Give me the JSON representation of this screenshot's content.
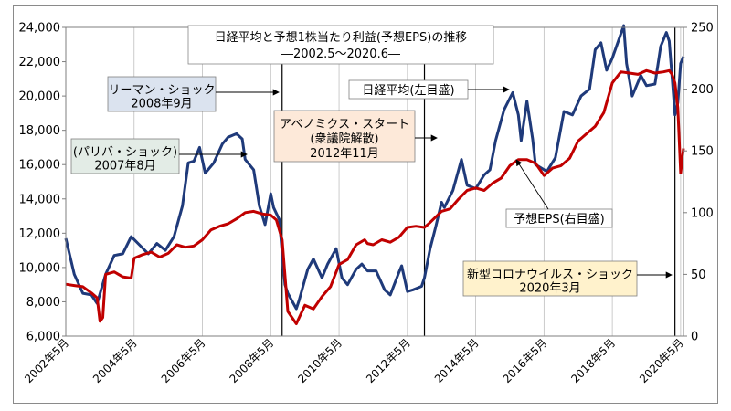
{
  "chart_data": {
    "type": "line",
    "title": "日経平均と予想1株当たり利益(予想EPS)の推移",
    "subtitle": "―2002.5～2020.6―",
    "x_ticks": [
      "2002年5月",
      "2004年5月",
      "2006年5月",
      "2008年5月",
      "2010年5月",
      "2012年5月",
      "2014年5月",
      "2016年5月",
      "2018年5月",
      "2020年5月"
    ],
    "xlim": [
      "2002-05",
      "2020-06"
    ],
    "y_left": {
      "ylim": [
        6000,
        24000
      ],
      "ticks": [
        "6,000",
        "8,000",
        "10,000",
        "12,000",
        "14,000",
        "16,000",
        "18,000",
        "20,000",
        "22,000",
        "24,000"
      ]
    },
    "y_right": {
      "ylim": [
        0,
        250
      ],
      "ticks": [
        "0",
        "50",
        "100",
        "150",
        "200",
        "250"
      ]
    },
    "grid": "vertical",
    "series": [
      {
        "name": "日経平均(左目盛)",
        "axis": "left",
        "color": "#1f3a7a",
        "points": [
          [
            "2002-05",
            11700
          ],
          [
            "2002-08",
            9600
          ],
          [
            "2002-11",
            8500
          ],
          [
            "2003-02",
            8400
          ],
          [
            "2003-04",
            7900
          ],
          [
            "2003-07",
            9600
          ],
          [
            "2003-10",
            10700
          ],
          [
            "2004-01",
            10800
          ],
          [
            "2004-04",
            11800
          ],
          [
            "2004-07",
            11300
          ],
          [
            "2004-10",
            10800
          ],
          [
            "2005-01",
            11400
          ],
          [
            "2005-04",
            11000
          ],
          [
            "2005-07",
            11800
          ],
          [
            "2005-10",
            13600
          ],
          [
            "2005-12",
            16100
          ],
          [
            "2006-02",
            16200
          ],
          [
            "2006-04",
            17000
          ],
          [
            "2006-06",
            15500
          ],
          [
            "2006-09",
            16100
          ],
          [
            "2006-12",
            17200
          ],
          [
            "2007-02",
            17600
          ],
          [
            "2007-05",
            17800
          ],
          [
            "2007-07",
            17500
          ],
          [
            "2007-08",
            16300
          ],
          [
            "2007-11",
            15700
          ],
          [
            "2008-01",
            13600
          ],
          [
            "2008-03",
            12500
          ],
          [
            "2008-05",
            14300
          ],
          [
            "2008-06",
            13500
          ],
          [
            "2008-08",
            12800
          ],
          [
            "2008-10",
            9000
          ],
          [
            "2008-11",
            8500
          ],
          [
            "2009-02",
            7600
          ],
          [
            "2009-03",
            8100
          ],
          [
            "2009-06",
            9900
          ],
          [
            "2009-08",
            10500
          ],
          [
            "2009-11",
            9400
          ],
          [
            "2010-01",
            10200
          ],
          [
            "2010-04",
            11100
          ],
          [
            "2010-06",
            9400
          ],
          [
            "2010-08",
            9000
          ],
          [
            "2010-11",
            9900
          ],
          [
            "2011-01",
            10200
          ],
          [
            "2011-03",
            9800
          ],
          [
            "2011-06",
            9800
          ],
          [
            "2011-09",
            8700
          ],
          [
            "2011-11",
            8400
          ],
          [
            "2012-02",
            9700
          ],
          [
            "2012-03",
            10100
          ],
          [
            "2012-05",
            8600
          ],
          [
            "2012-07",
            8700
          ],
          [
            "2012-10",
            8900
          ],
          [
            "2012-11",
            9400
          ],
          [
            "2013-01",
            11100
          ],
          [
            "2013-03",
            12400
          ],
          [
            "2013-05",
            13800
          ],
          [
            "2013-06",
            13500
          ],
          [
            "2013-09",
            14500
          ],
          [
            "2013-12",
            16300
          ],
          [
            "2014-02",
            14800
          ],
          [
            "2014-05",
            14600
          ],
          [
            "2014-08",
            15400
          ],
          [
            "2014-10",
            15700
          ],
          [
            "2014-12",
            17400
          ],
          [
            "2015-03",
            19200
          ],
          [
            "2015-06",
            20200
          ],
          [
            "2015-08",
            18900
          ],
          [
            "2015-09",
            17400
          ],
          [
            "2015-11",
            19700
          ],
          [
            "2016-01",
            17500
          ],
          [
            "2016-02",
            16000
          ],
          [
            "2016-06",
            15600
          ],
          [
            "2016-09",
            16400
          ],
          [
            "2016-12",
            19100
          ],
          [
            "2017-03",
            18900
          ],
          [
            "2017-06",
            20000
          ],
          [
            "2017-09",
            20400
          ],
          [
            "2017-11",
            22700
          ],
          [
            "2018-01",
            23100
          ],
          [
            "2018-03",
            21500
          ],
          [
            "2018-05",
            22200
          ],
          [
            "2018-09",
            24100
          ],
          [
            "2018-10",
            21900
          ],
          [
            "2018-12",
            20000
          ],
          [
            "2019-03",
            21200
          ],
          [
            "2019-05",
            20600
          ],
          [
            "2019-08",
            20700
          ],
          [
            "2019-10",
            22900
          ],
          [
            "2019-12",
            23700
          ],
          [
            "2020-01",
            23200
          ],
          [
            "2020-02",
            21100
          ],
          [
            "2020-03",
            18900
          ],
          [
            "2020-04",
            19600
          ],
          [
            "2020-05",
            21900
          ],
          [
            "2020-06",
            22300
          ]
        ]
      },
      {
        "name": "予想EPS(右目盛)",
        "axis": "right",
        "color": "#c00000",
        "points": [
          [
            "2002-05",
            42
          ],
          [
            "2002-08",
            41
          ],
          [
            "2002-11",
            40
          ],
          [
            "2003-02",
            35
          ],
          [
            "2003-04",
            31
          ],
          [
            "2003-05",
            12
          ],
          [
            "2003-06",
            15
          ],
          [
            "2003-07",
            50
          ],
          [
            "2003-10",
            52
          ],
          [
            "2004-01",
            48
          ],
          [
            "2004-04",
            47
          ],
          [
            "2004-05",
            63
          ],
          [
            "2004-08",
            66
          ],
          [
            "2004-11",
            68
          ],
          [
            "2005-02",
            64
          ],
          [
            "2005-05",
            67
          ],
          [
            "2005-08",
            74
          ],
          [
            "2005-11",
            72
          ],
          [
            "2006-02",
            73
          ],
          [
            "2006-05",
            78
          ],
          [
            "2006-08",
            86
          ],
          [
            "2006-11",
            89
          ],
          [
            "2007-02",
            91
          ],
          [
            "2007-05",
            95
          ],
          [
            "2007-08",
            100
          ],
          [
            "2007-11",
            101
          ],
          [
            "2008-02",
            99
          ],
          [
            "2008-05",
            98
          ],
          [
            "2008-07",
            94
          ],
          [
            "2008-09",
            78
          ],
          [
            "2008-11",
            20
          ],
          [
            "2009-02",
            10
          ],
          [
            "2009-05",
            25
          ],
          [
            "2009-08",
            22
          ],
          [
            "2009-11",
            32
          ],
          [
            "2010-02",
            40
          ],
          [
            "2010-05",
            58
          ],
          [
            "2010-08",
            62
          ],
          [
            "2010-11",
            74
          ],
          [
            "2011-02",
            78
          ],
          [
            "2011-03",
            75
          ],
          [
            "2011-05",
            74
          ],
          [
            "2011-08",
            78
          ],
          [
            "2011-11",
            76
          ],
          [
            "2012-02",
            80
          ],
          [
            "2012-05",
            88
          ],
          [
            "2012-08",
            89
          ],
          [
            "2012-11",
            88
          ],
          [
            "2013-01",
            92
          ],
          [
            "2013-05",
            101
          ],
          [
            "2013-08",
            103
          ],
          [
            "2013-11",
            111
          ],
          [
            "2014-02",
            118
          ],
          [
            "2014-05",
            120
          ],
          [
            "2014-08",
            118
          ],
          [
            "2014-11",
            124
          ],
          [
            "2015-02",
            128
          ],
          [
            "2015-05",
            138
          ],
          [
            "2015-08",
            143
          ],
          [
            "2015-11",
            143
          ],
          [
            "2016-02",
            140
          ],
          [
            "2016-05",
            130
          ],
          [
            "2016-08",
            136
          ],
          [
            "2016-11",
            138
          ],
          [
            "2017-02",
            144
          ],
          [
            "2017-05",
            158
          ],
          [
            "2017-08",
            164
          ],
          [
            "2017-11",
            170
          ],
          [
            "2018-02",
            181
          ],
          [
            "2018-05",
            205
          ],
          [
            "2018-08",
            214
          ],
          [
            "2018-11",
            213
          ],
          [
            "2019-02",
            212
          ],
          [
            "2019-05",
            215
          ],
          [
            "2019-08",
            213
          ],
          [
            "2019-11",
            214
          ],
          [
            "2020-01",
            215
          ],
          [
            "2020-02",
            212
          ],
          [
            "2020-03",
            205
          ],
          [
            "2020-04",
            185
          ],
          [
            "2020-05",
            132
          ],
          [
            "2020-06",
            152
          ]
        ]
      }
    ],
    "annotations": [
      {
        "id": "ann-lehman",
        "lines": [
          "リーマン・ショック",
          "2008年9月"
        ],
        "bg": "#dbe3ef",
        "arrow_to": "2008-09"
      },
      {
        "id": "ann-paribas",
        "lines": [
          "(パリバ・ショック)",
          "2007年8月"
        ],
        "bg": "#e3ece6",
        "arrow_to": "2007-08"
      },
      {
        "id": "ann-abenomics",
        "lines": [
          "アベノミクス・スタート",
          "(衆議院解散)",
          "2012年11月"
        ],
        "bg": "#fde9d9",
        "arrow_to": "2012-11"
      },
      {
        "id": "ann-nikkei",
        "lines": [
          "日経平均(左目盛)"
        ],
        "bg": "#ffffff",
        "arrow_to": "nikkei-line"
      },
      {
        "id": "ann-eps",
        "lines": [
          "予想EPS(右目盛)"
        ],
        "bg": "#ffffff",
        "arrow_to": "eps-line"
      },
      {
        "id": "ann-corona",
        "lines": [
          "新型コロナウイルス・ショック",
          "2020年3月"
        ],
        "bg": "#fff2cc",
        "arrow_to": "2020-03"
      }
    ],
    "event_lines": [
      "2008-09",
      "2012-11",
      "2020-03"
    ]
  }
}
